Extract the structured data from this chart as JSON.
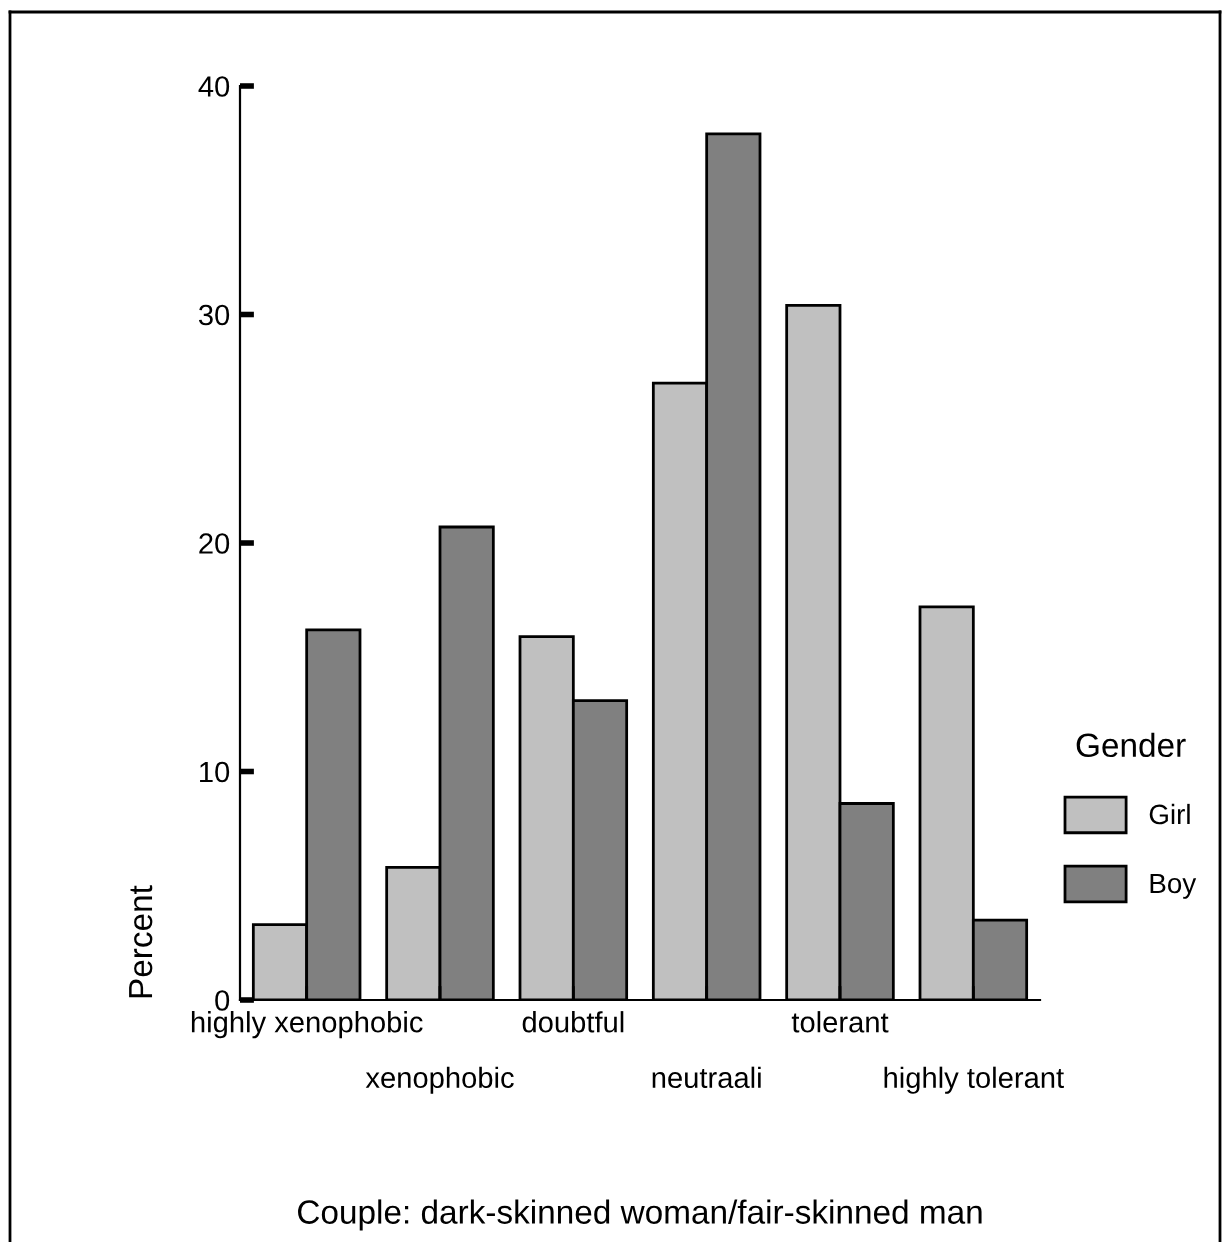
{
  "chart_data": {
    "type": "bar",
    "xlabel": "Couple: dark-skinned woman/fair-skinned man",
    "ylabel": "Percent",
    "legend_title": "Gender",
    "categories": [
      "highly xenophobic",
      "xenophobic",
      "doubtful",
      "neutraali",
      "tolerant",
      "highly tolerant"
    ],
    "series": [
      {
        "name": "Girl",
        "color": "#c0c0c0",
        "values": [
          3.3,
          5.8,
          15.9,
          27.0,
          30.4,
          17.2
        ]
      },
      {
        "name": "Boy",
        "color": "#808080",
        "values": [
          16.2,
          20.7,
          13.1,
          37.9,
          8.6,
          3.5
        ]
      }
    ],
    "ylim": [
      0,
      40
    ],
    "yticks": [
      0,
      10,
      20,
      30,
      40
    ],
    "grid": false,
    "legend": "right"
  }
}
